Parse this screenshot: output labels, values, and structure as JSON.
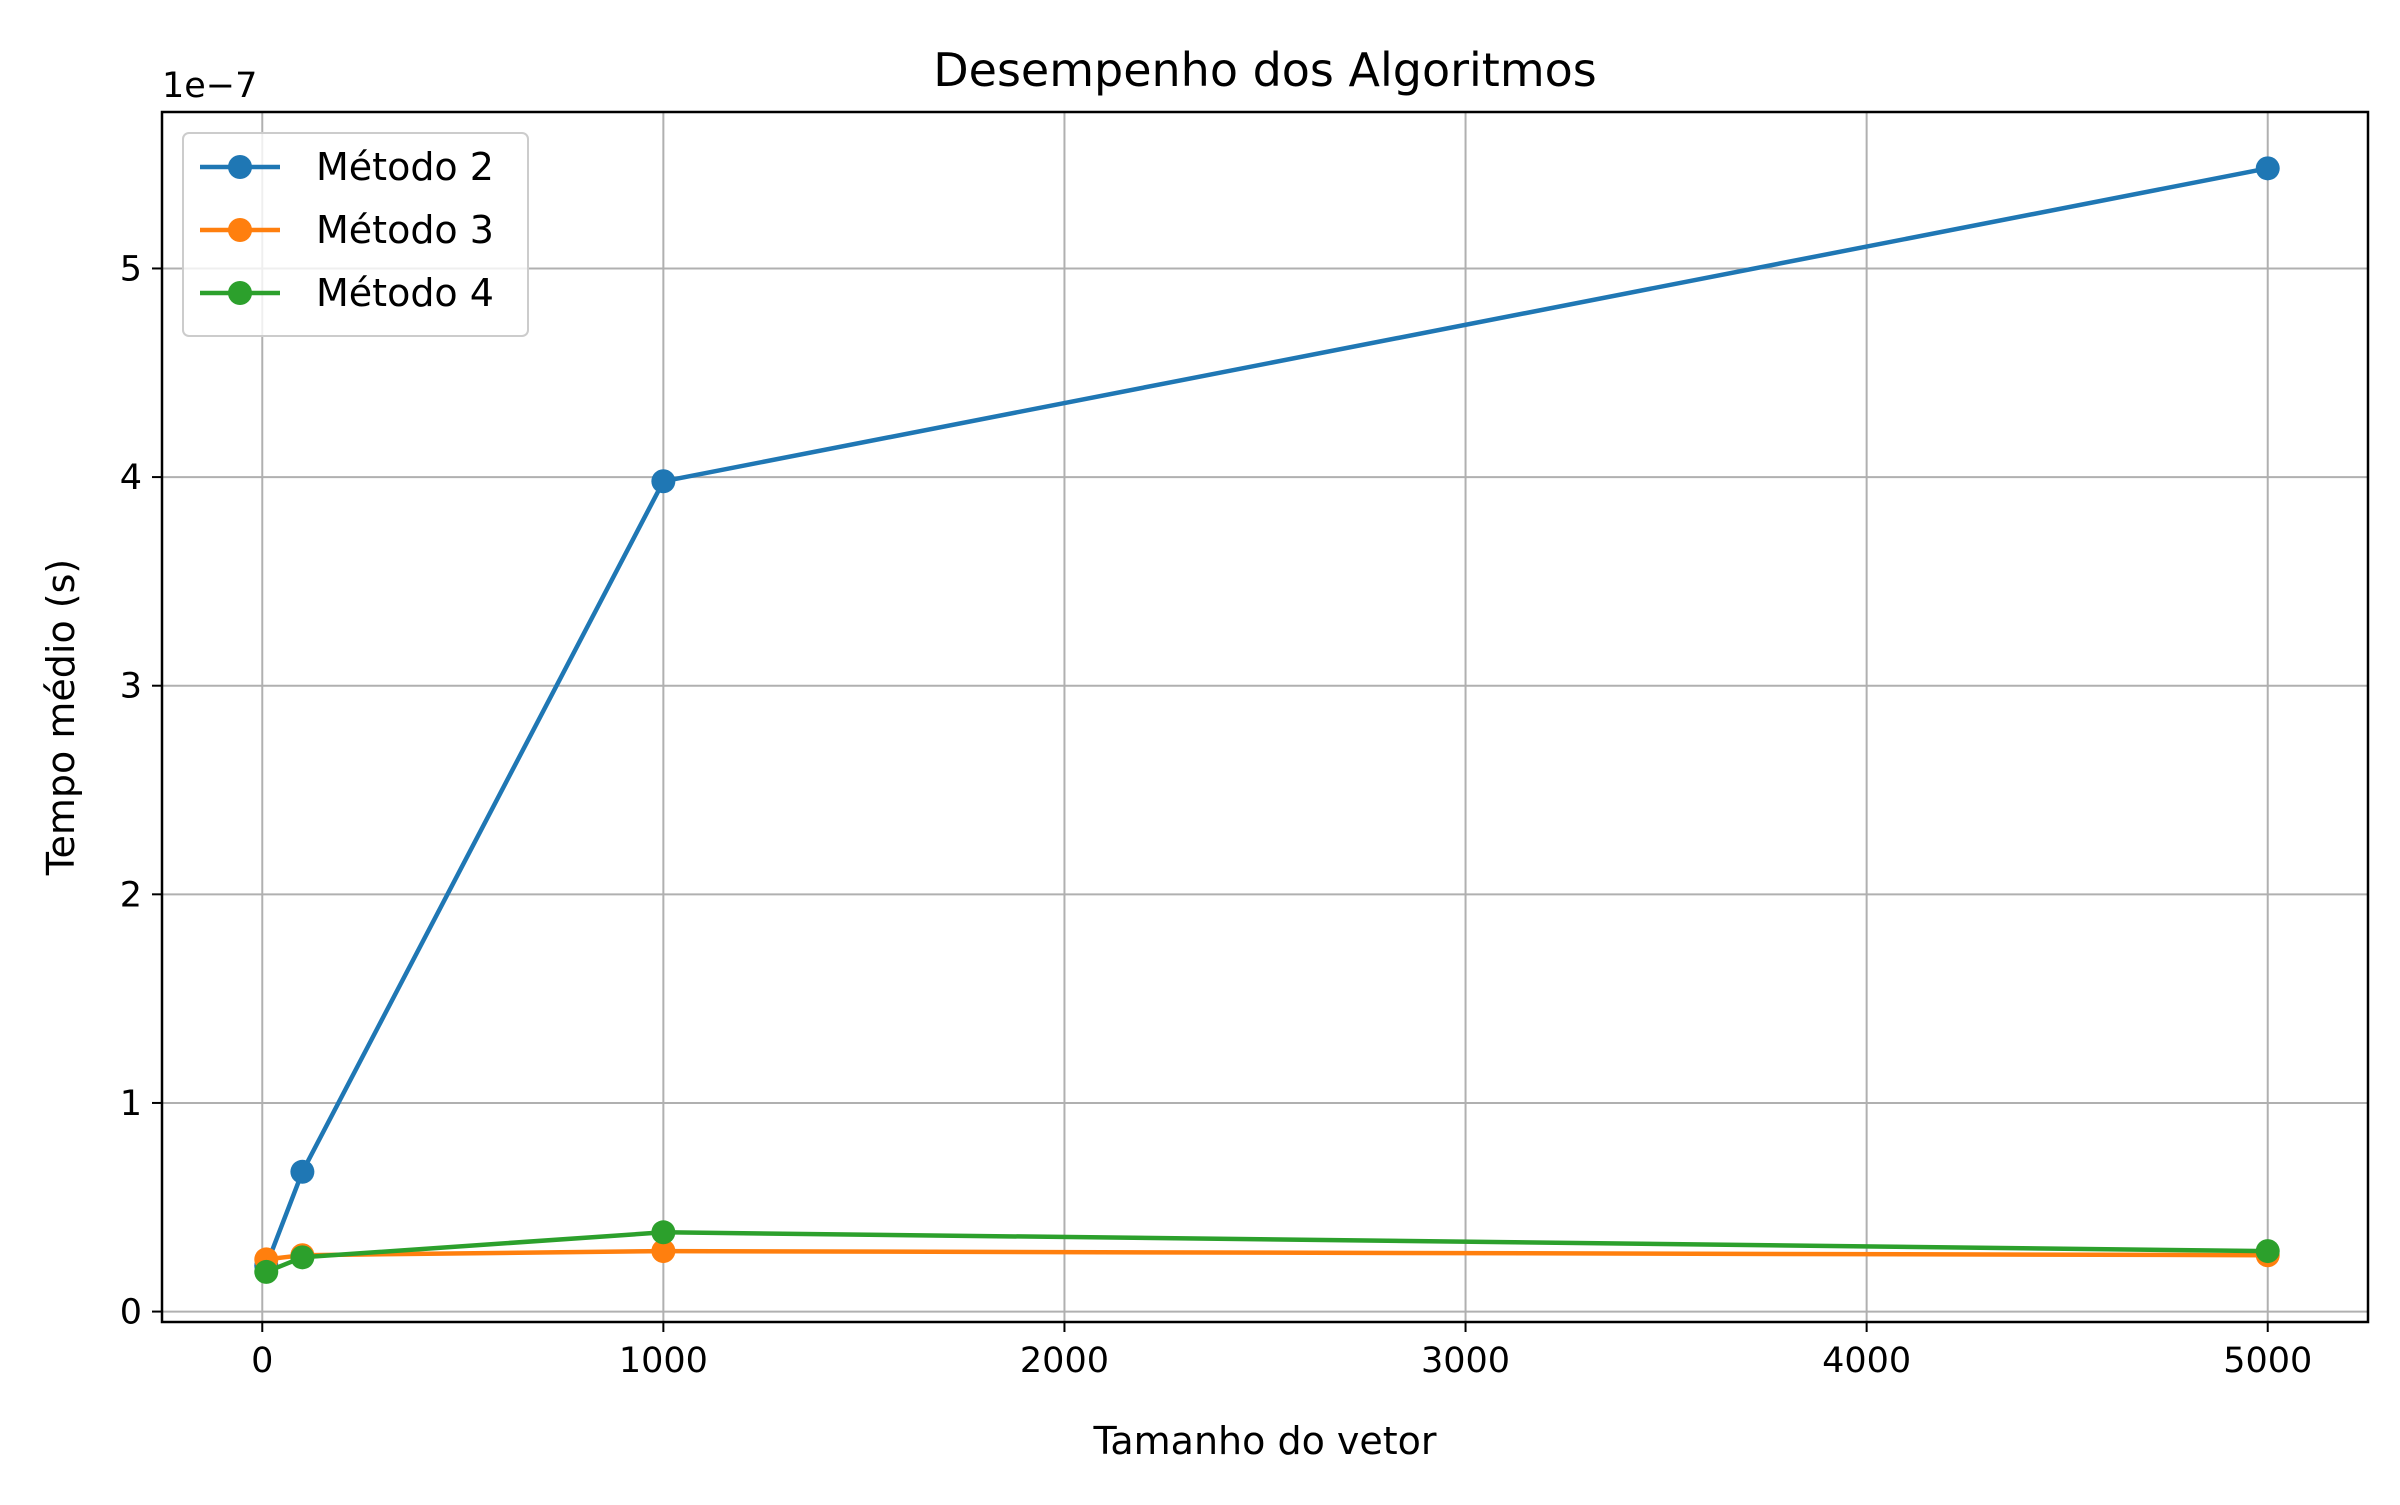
{
  "chart_data": {
    "type": "line",
    "title": "Desempenho dos Algoritmos",
    "xlabel": "Tamanho do vetor",
    "ylabel": "Tempo médio (s)",
    "y_offset_label": "1e−7",
    "y_scale_factor": 1e-07,
    "xlim": [
      -250,
      5250
    ],
    "ylim": [
      -0.05,
      5.75
    ],
    "x_ticks": [
      0,
      1000,
      2000,
      3000,
      4000,
      5000
    ],
    "x_tick_labels": [
      "0",
      "1000",
      "2000",
      "3000",
      "4000",
      "5000"
    ],
    "y_ticks": [
      0,
      1,
      2,
      3,
      4,
      5
    ],
    "y_tick_labels": [
      "0",
      "1",
      "2",
      "3",
      "4",
      "5"
    ],
    "grid": true,
    "legend_position": "top-left",
    "x": [
      10,
      100,
      1000,
      5000
    ],
    "series": [
      {
        "name": "Método 2",
        "color": "#1f77b4",
        "values": [
          0.22,
          0.67,
          3.98,
          5.48
        ]
      },
      {
        "name": "Método 3",
        "color": "#ff7f0e",
        "values": [
          0.25,
          0.27,
          0.29,
          0.27
        ]
      },
      {
        "name": "Método 4",
        "color": "#2ca02c",
        "values": [
          0.19,
          0.26,
          0.38,
          0.29
        ]
      }
    ]
  }
}
